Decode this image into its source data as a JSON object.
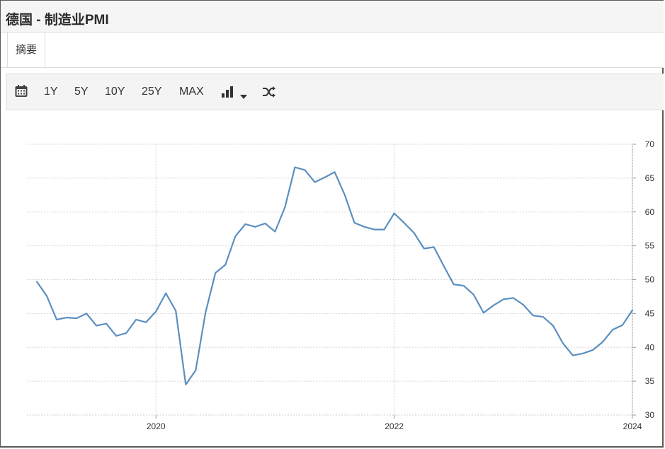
{
  "header": {
    "title": "德国 - 制造业PMI"
  },
  "tabs": [
    {
      "label": "摘要"
    }
  ],
  "toolbar": {
    "range_buttons": [
      "1Y",
      "5Y",
      "10Y",
      "25Y",
      "MAX"
    ],
    "icons": [
      "calendar-icon",
      "bar-chart-icon",
      "caret-down-icon",
      "shuffle-icon"
    ]
  },
  "chart_data": {
    "type": "line",
    "title": "",
    "xlabel": "",
    "ylabel": "",
    "x_ticks": [
      "2020",
      "2022",
      "2024"
    ],
    "y_ticks": [
      30,
      35,
      40,
      45,
      50,
      55,
      60,
      65,
      70
    ],
    "ylim": [
      30,
      70
    ],
    "xlim": [
      "2018-12",
      "2024-01"
    ],
    "grid": true,
    "y_axis_side": "right",
    "color": "#5b8fbf",
    "x": [
      "2019-01",
      "2019-02",
      "2019-03",
      "2019-04",
      "2019-05",
      "2019-06",
      "2019-07",
      "2019-08",
      "2019-09",
      "2019-10",
      "2019-11",
      "2019-12",
      "2020-01",
      "2020-02",
      "2020-03",
      "2020-04",
      "2020-05",
      "2020-06",
      "2020-07",
      "2020-08",
      "2020-09",
      "2020-10",
      "2020-11",
      "2020-12",
      "2021-01",
      "2021-02",
      "2021-03",
      "2021-04",
      "2021-05",
      "2021-06",
      "2021-07",
      "2021-08",
      "2021-09",
      "2021-10",
      "2021-11",
      "2021-12",
      "2022-01",
      "2022-02",
      "2022-03",
      "2022-04",
      "2022-05",
      "2022-06",
      "2022-07",
      "2022-08",
      "2022-09",
      "2022-10",
      "2022-11",
      "2022-12",
      "2023-01",
      "2023-02",
      "2023-03",
      "2023-04",
      "2023-05",
      "2023-06",
      "2023-07",
      "2023-08",
      "2023-09",
      "2023-10",
      "2023-11",
      "2023-12",
      "2024-01"
    ],
    "values": [
      49.7,
      47.6,
      44.1,
      44.4,
      44.3,
      45.0,
      43.2,
      43.5,
      41.7,
      42.1,
      44.1,
      43.7,
      45.3,
      48.0,
      45.4,
      34.5,
      36.6,
      45.2,
      51.0,
      52.2,
      56.4,
      58.2,
      57.8,
      58.3,
      57.1,
      60.7,
      66.6,
      66.2,
      64.4,
      65.1,
      65.9,
      62.6,
      58.4,
      57.8,
      57.4,
      57.4,
      59.8,
      58.4,
      56.9,
      54.6,
      54.8,
      52.0,
      49.3,
      49.1,
      47.8,
      45.1,
      46.2,
      47.1,
      47.3,
      46.3,
      44.7,
      44.5,
      43.2,
      40.6,
      38.8,
      39.1,
      39.6,
      40.8,
      42.6,
      43.3,
      45.5
    ]
  }
}
